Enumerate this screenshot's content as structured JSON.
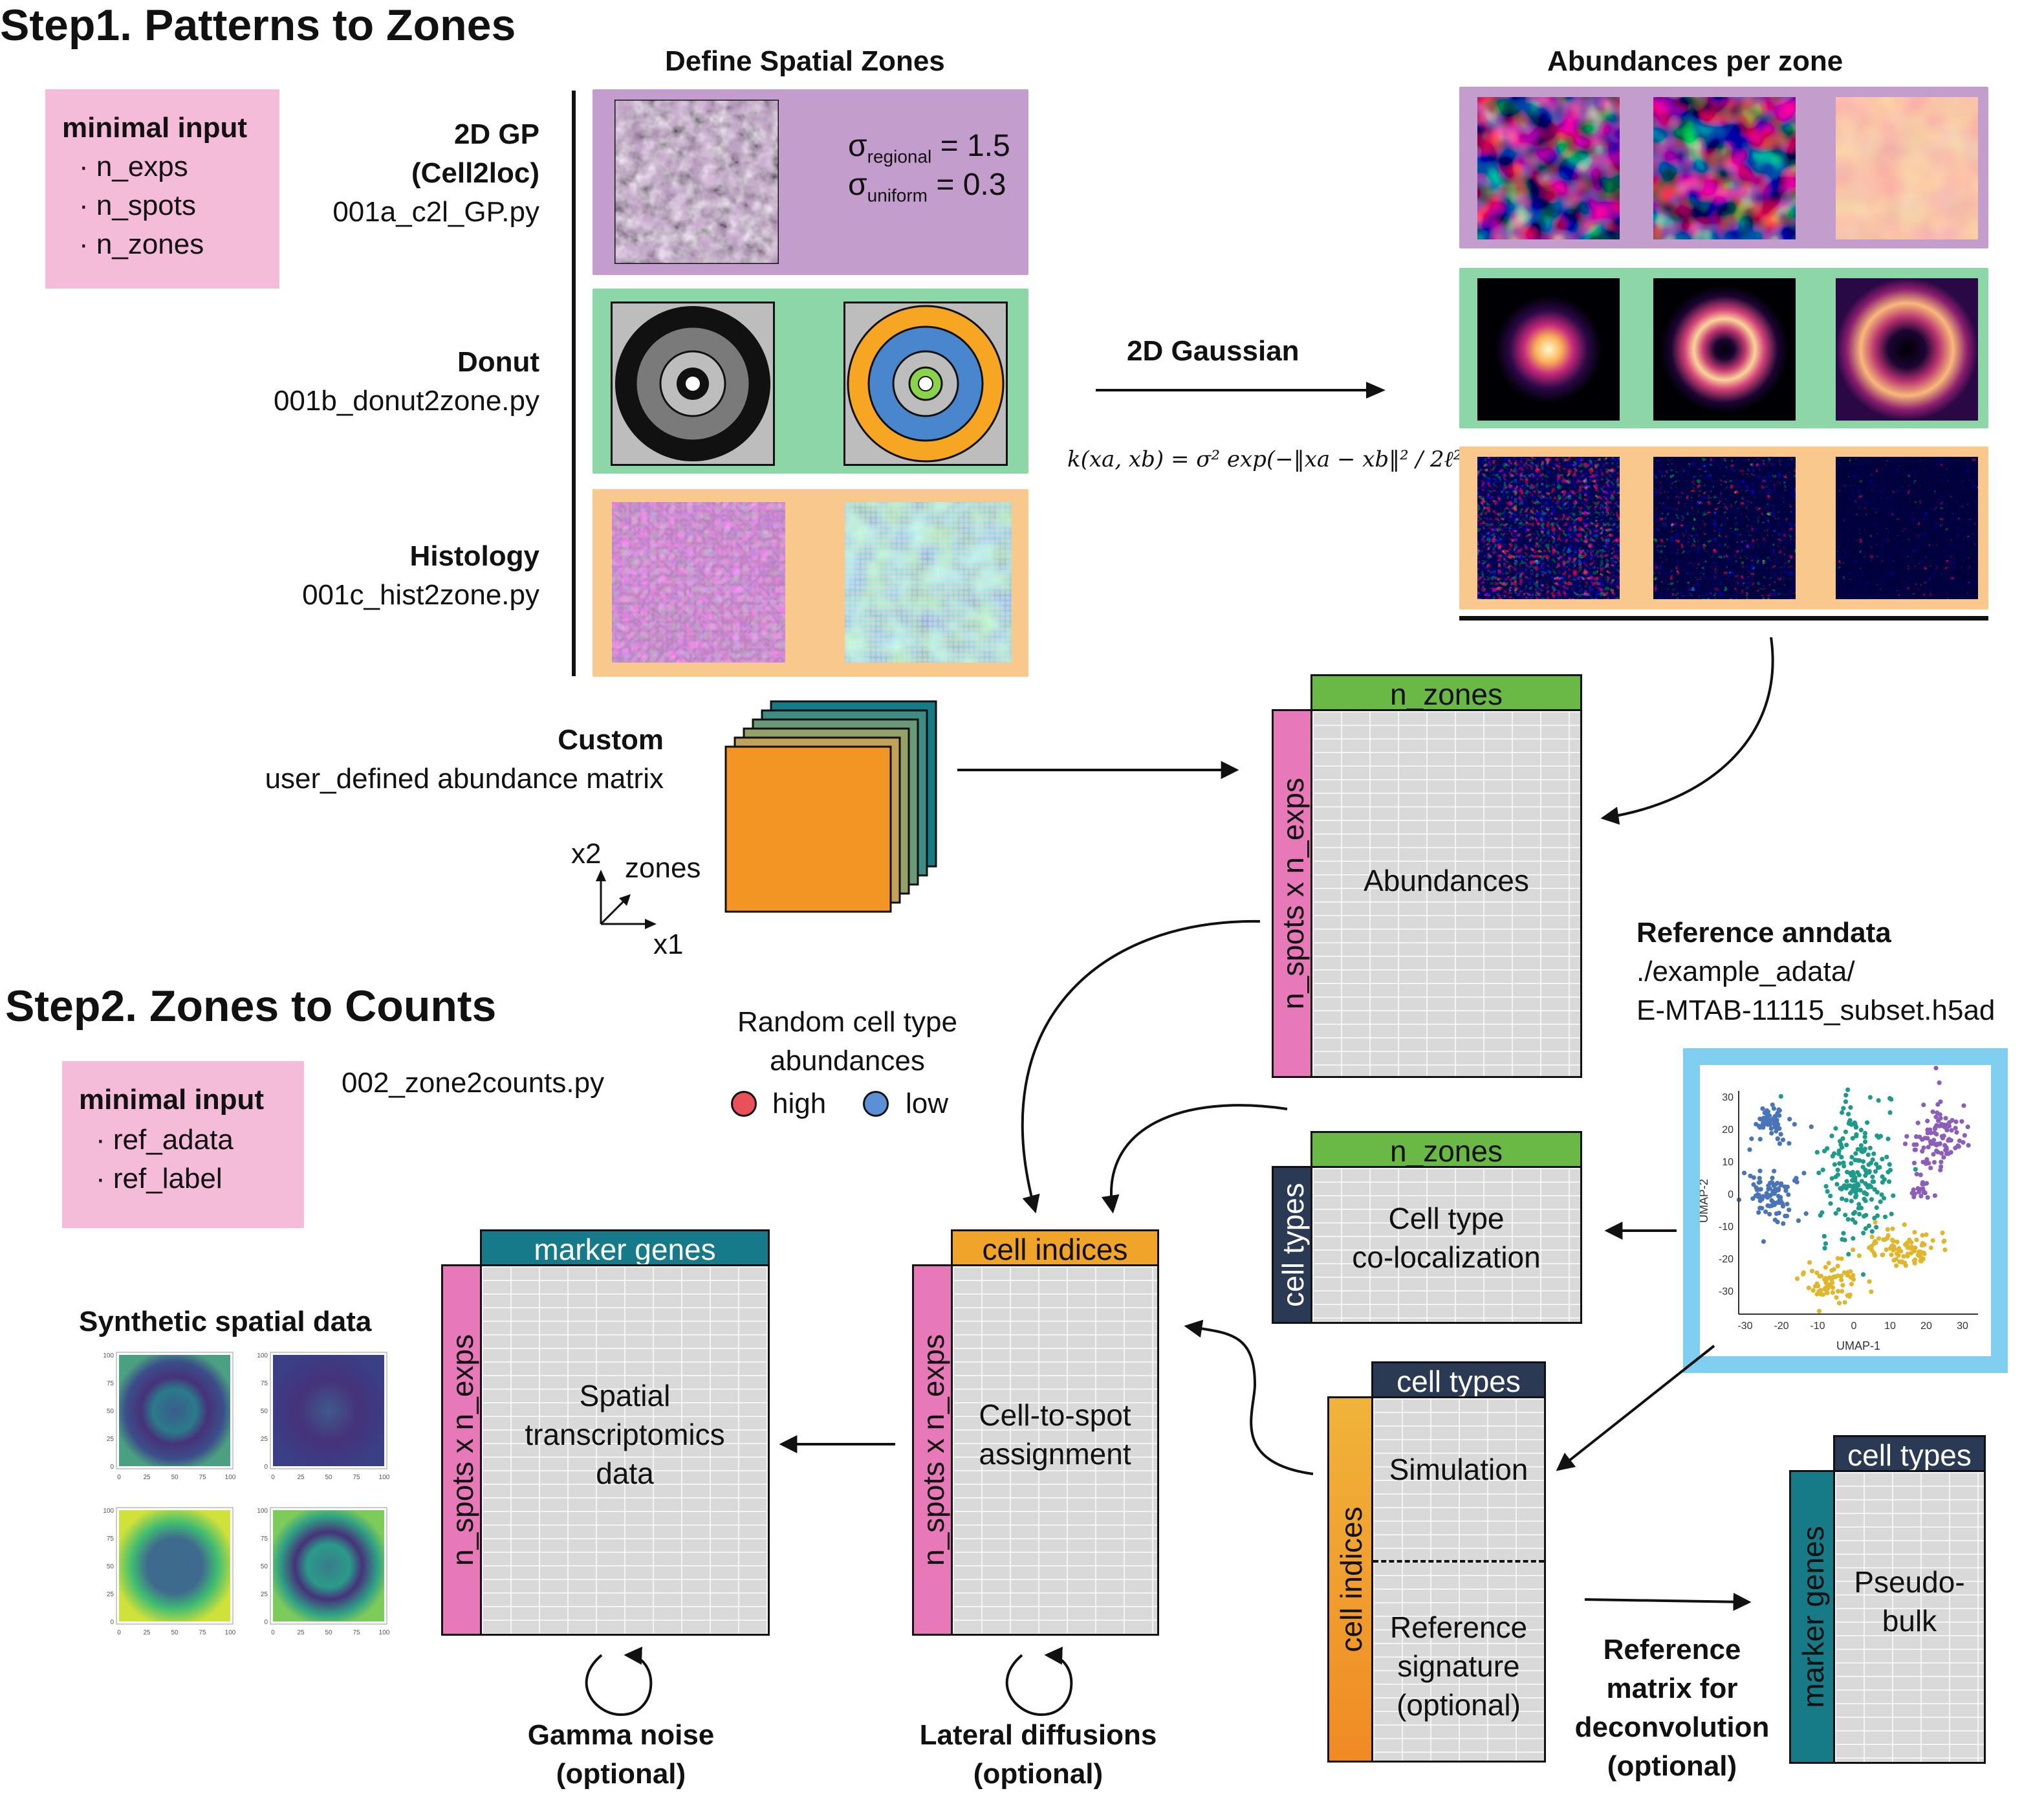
{
  "step1": {
    "title": "Step1. Patterns to Zones",
    "minimal_input": {
      "title": "minimal input",
      "items": [
        "· n_exps",
        "· n_spots",
        "· n_zones"
      ]
    },
    "define_zones_title": "Define Spatial Zones",
    "abundances_title": "Abundances per zone",
    "gp": {
      "label1": "2D GP",
      "label2": "(Cell2loc)",
      "script": "001a_c2l_GP.py",
      "sigma1": "σ",
      "sigma1_sub": "regional",
      "sigma1_val": "= 1.5",
      "sigma2": "σ",
      "sigma2_sub": "uniform",
      "sigma2_val": "= 0.3"
    },
    "donut": {
      "label": "Donut",
      "script": "001b_donut2zone.py"
    },
    "histology": {
      "label": "Histology",
      "script": "001c_hist2zone.py"
    },
    "gaussian": {
      "label": "2D Gaussian",
      "formula": "k(xa, xb) = σ² exp(−‖xa − xb‖² / 2ℓ²)"
    },
    "custom": {
      "label": "Custom",
      "desc": "user_defined abundance matrix",
      "axis_x2": "x2",
      "axis_zones": "zones",
      "axis_x1": "x1"
    }
  },
  "step2": {
    "title": "Step2. Zones to Counts",
    "minimal_input": {
      "title": "minimal input",
      "items": [
        "· ref_adata",
        "· ref_label"
      ]
    },
    "script": "002_zone2counts.py",
    "random_title1": "Random cell type",
    "random_title2": "abundances",
    "legend_high": "high",
    "legend_low": "low"
  },
  "reference": {
    "title": "Reference anndata",
    "path1": "./example_adata/",
    "path2": "E-MTAB-11115_subset.h5ad",
    "umap": {
      "xlabel": "UMAP-1",
      "ylabel": "UMAP-2",
      "xticks": [
        "-30",
        "-20",
        "-10",
        "0",
        "10",
        "20",
        "30"
      ],
      "yticks": [
        "30",
        "20",
        "10",
        "0",
        "-10",
        "-20",
        "-30"
      ]
    }
  },
  "matrices": {
    "abundances": {
      "top": "n_zones",
      "side": "n_spots x n_exps",
      "label": "Abundances"
    },
    "coloc": {
      "top": "n_zones",
      "side": "cell types",
      "label1": "Cell type",
      "label2": "co-localization"
    },
    "cell_idx": {
      "top": "cell indices",
      "side": "n_spots x n_exps",
      "label1": "Cell-to-spot",
      "label2": "assignment"
    },
    "spatial": {
      "top": "marker genes",
      "side": "n_spots x n_exps",
      "label1": "Spatial",
      "label2": "transcriptomics",
      "label3": "data"
    },
    "simulation": {
      "top": "cell types",
      "side": "cell indices",
      "label_top": "Simulation",
      "label_b1": "Reference",
      "label_b2": "signature",
      "label_b3": "(optional)"
    },
    "pseudobulk": {
      "top": "cell types",
      "side": "marker genes",
      "label1": "Pseudo-",
      "label2": "bulk"
    }
  },
  "labels": {
    "gamma1": "Gamma noise",
    "gamma2": "(optional)",
    "lateral1": "Lateral diffusions",
    "lateral2": "(optional)",
    "refmat1": "Reference",
    "refmat2": "matrix for",
    "refmat3": "deconvolution",
    "refmat4": "(optional)",
    "synthetic": "Synthetic spatial data",
    "syn_ticks": [
      "0",
      "25",
      "50",
      "75",
      "100"
    ]
  },
  "colors": {
    "purple": "#c39dcb",
    "green": "#8dd6a8",
    "orange": "#f8c88d",
    "bar_green": "#6ab846",
    "bar_teal": "#167a8a",
    "bar_orange": "#f0a52a",
    "bar_navy": "#2a3a55",
    "side_pink": "#e879b8",
    "side_teal": "#177b87",
    "pink_box": "#f4bcd9",
    "high": "#e9505a",
    "low": "#5b8fd6",
    "umap_frame": "#7fcdef"
  }
}
